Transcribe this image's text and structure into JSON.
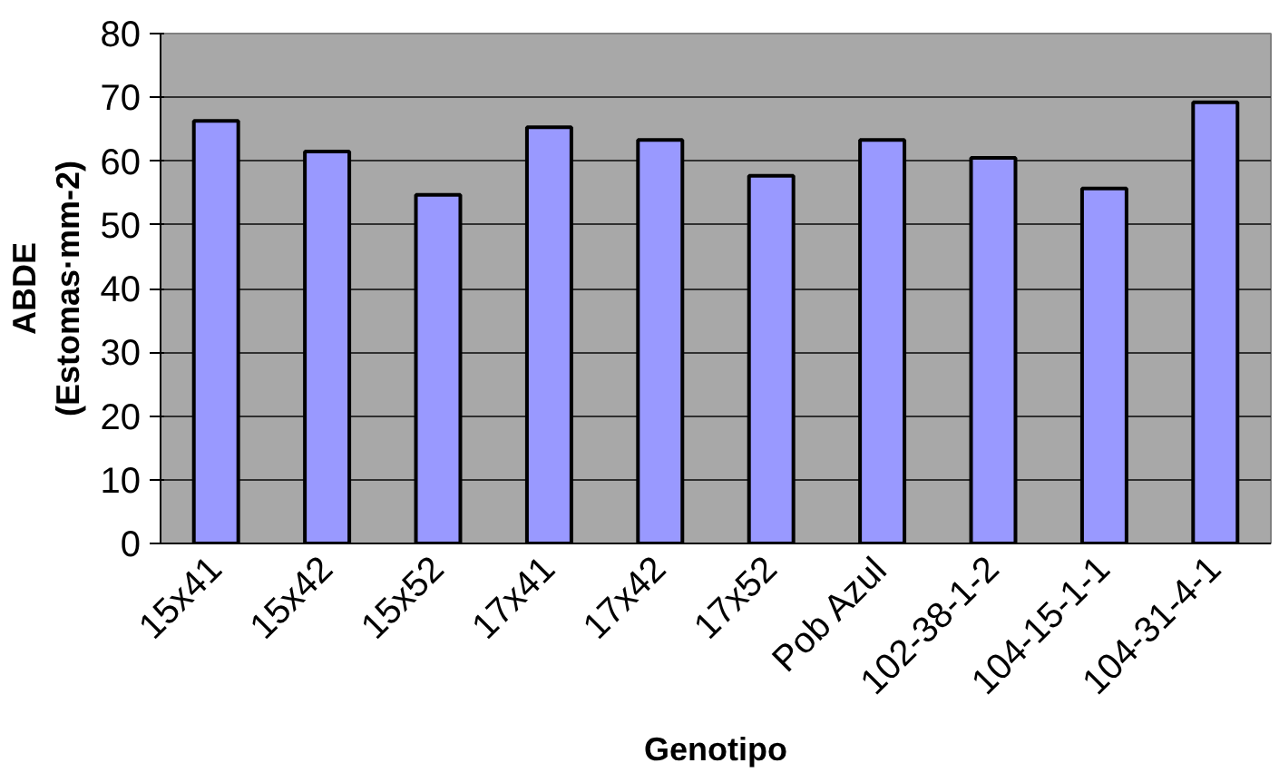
{
  "chart_data": {
    "type": "bar",
    "xlabel": "Genotipo",
    "ylabel": "ABDE\n(Estomas·mm-2)",
    "categories": [
      "15x41",
      "15x42",
      "15x52",
      "17x41",
      "17x42",
      "17x52",
      "Pob Azul",
      "102-38-1-2",
      "104-15-1-1",
      "104-31-4-1"
    ],
    "values": [
      66.3,
      61.5,
      54.7,
      65.3,
      63.3,
      57.7,
      63.3,
      60.5,
      55.7,
      69.2
    ],
    "color": "#9999ff",
    "ylim": [
      0,
      80
    ],
    "yticks": [
      0,
      10,
      20,
      30,
      40,
      50,
      60,
      70,
      80
    ],
    "grid": "y"
  }
}
